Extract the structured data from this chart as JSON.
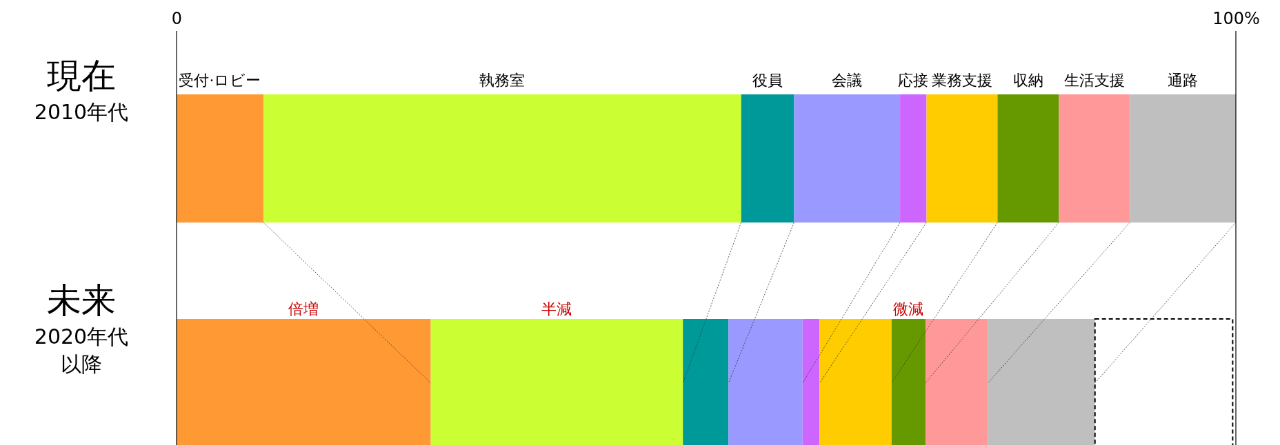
{
  "chart_data": {
    "type": "bar",
    "orientation": "horizontal",
    "stacked": true,
    "categories": [
      "現在\n2010年代",
      "未来\n2020年代以降"
    ],
    "series": [
      {
        "name": "受付·ロビー",
        "color": "#ff9933",
        "values": [
          8.2,
          24.0
        ],
        "value_labels": [
          null,
          "倍増"
        ]
      },
      {
        "name": "執務室",
        "color": "#ccff33",
        "values": [
          45.1,
          23.8
        ],
        "value_labels": [
          null,
          "半減"
        ]
      },
      {
        "name": "役員",
        "color": "#009999",
        "values": [
          5.0,
          4.3
        ]
      },
      {
        "name": "会議",
        "color": "#9999ff",
        "values": [
          10.0,
          7.0
        ]
      },
      {
        "name": "応接",
        "color": "#cc66ff",
        "values": [
          2.5,
          1.6
        ]
      },
      {
        "name": "業務支援",
        "color": "#ffcc00",
        "values": [
          6.7,
          6.8
        ]
      },
      {
        "name": "収納",
        "color": "#669900",
        "values": [
          5.8,
          3.2
        ],
        "value_labels": [
          null,
          "微減"
        ]
      },
      {
        "name": "生活支援",
        "color": "#ff9999",
        "values": [
          6.7,
          5.9
        ]
      },
      {
        "name": "通路",
        "color": "#bfbfbf",
        "values": [
          10.0,
          10.1
        ]
      },
      {
        "color": "#ffffff",
        "line_style": "dashed",
        "values": [
          null,
          13.0
        ]
      }
    ],
    "xlim": [
      0,
      100
    ],
    "xticks": [
      0,
      {
        "value": 100,
        "label": "100%"
      }
    ]
  }
}
